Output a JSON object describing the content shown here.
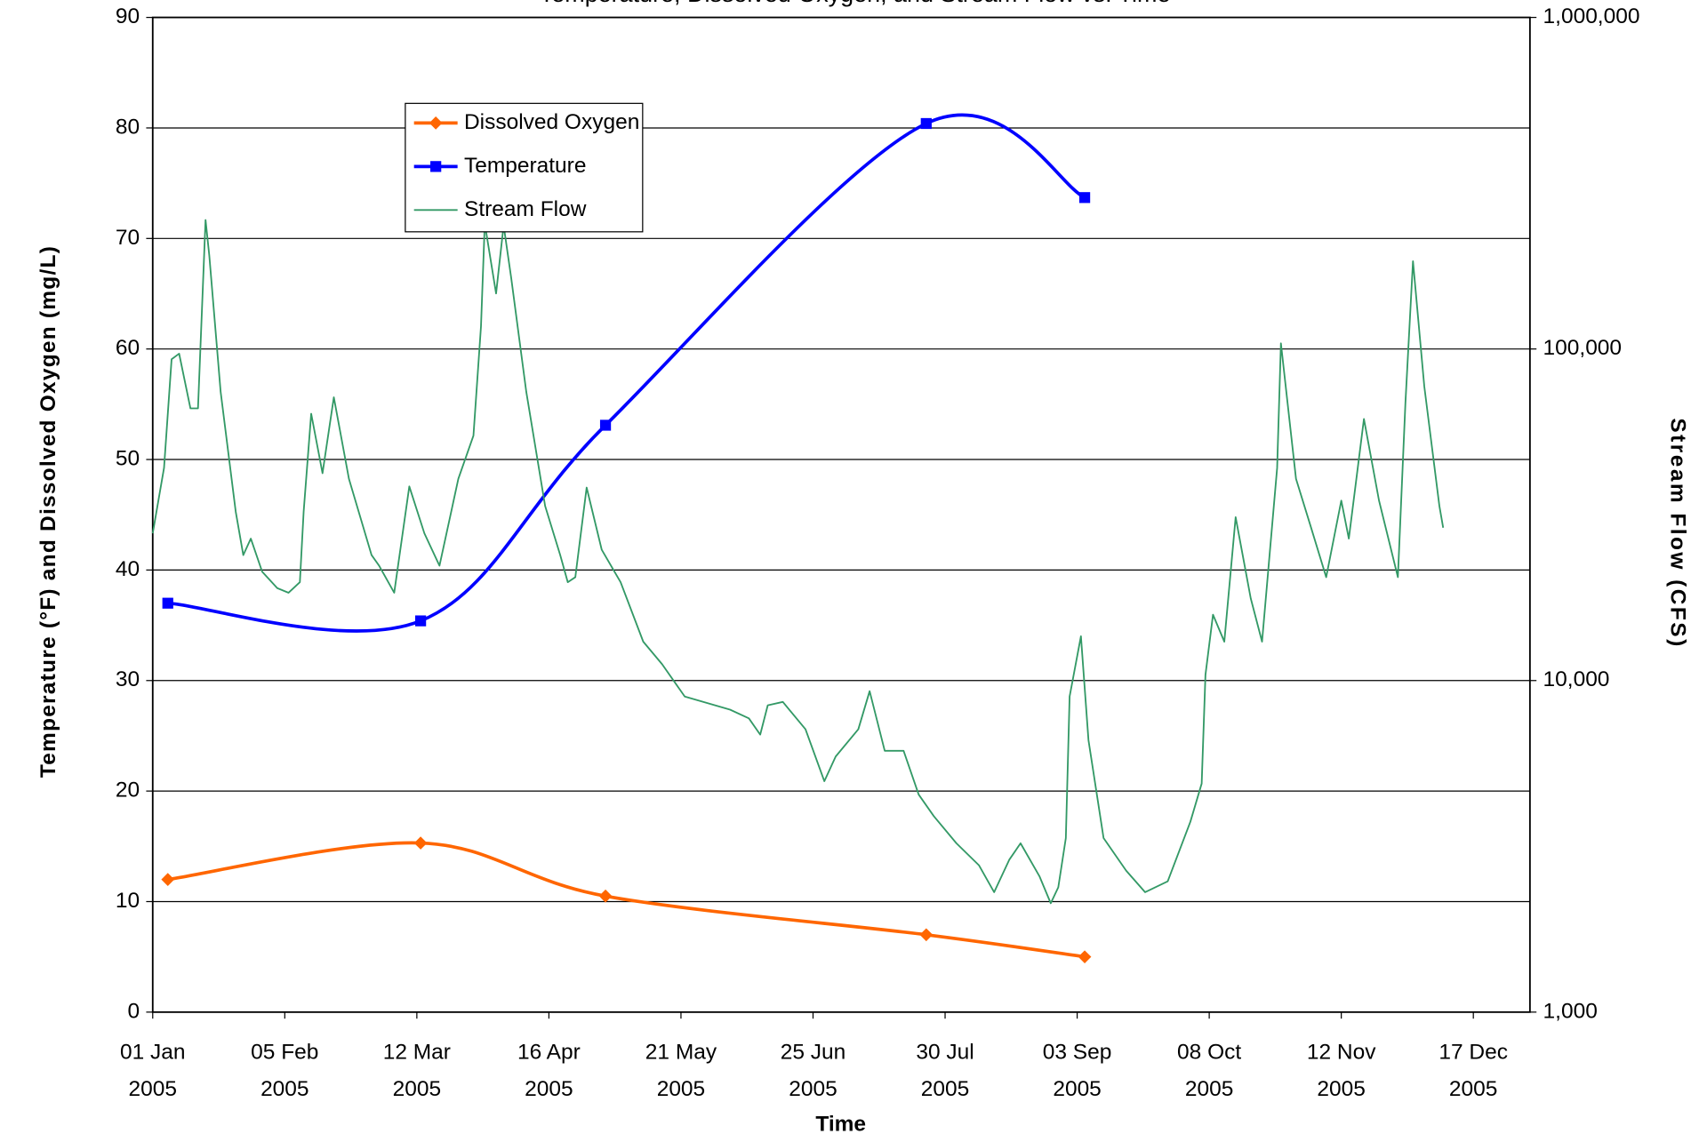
{
  "chart_data": {
    "type": "line",
    "title": "Temperature, Dissolved Oxygen, and Stream Flow vs. Time",
    "x_label": "Time",
    "y_label": "Temperature (°F) and Dissolved Oxygen (mg/L)",
    "y2_label": "Stream Flow (CFS)",
    "xlim": [
      "2005-01-01",
      "2005-12-31"
    ],
    "xticks": [
      {
        "value": "2005-01-01",
        "label": "01 Jan 2005"
      },
      {
        "value": "2005-02-05",
        "label": "05 Feb 2005"
      },
      {
        "value": "2005-03-12",
        "label": "12 Mar 2005"
      },
      {
        "value": "2005-04-16",
        "label": "16 Apr 2005"
      },
      {
        "value": "2005-05-21",
        "label": "21 May 2005"
      },
      {
        "value": "2005-06-25",
        "label": "25 Jun 2005"
      },
      {
        "value": "2005-07-30",
        "label": "30 Jul 2005"
      },
      {
        "value": "2005-09-03",
        "label": "03 Sep 2005"
      },
      {
        "value": "2005-10-08",
        "label": "08 Oct 2005"
      },
      {
        "value": "2005-11-12",
        "label": "12 Nov 2005"
      },
      {
        "value": "2005-12-17",
        "label": "17 Dec 2005"
      }
    ],
    "ylim": [
      0,
      90
    ],
    "yticks": [
      0,
      10,
      20,
      30,
      40,
      50,
      60,
      70,
      80,
      90
    ],
    "y2lim": [
      1000,
      1000000
    ],
    "y2ticks": [
      {
        "value": 1000,
        "label": "1,000"
      },
      {
        "value": 10000,
        "label": "10,000"
      },
      {
        "value": 100000,
        "label": "100,000"
      },
      {
        "value": 1000000,
        "label": "1,000,000"
      }
    ],
    "y2_log": true,
    "grid": true,
    "legend": "upper-left",
    "series": [
      {
        "name": "Dissolved Oxygen",
        "color": "#ff6600",
        "marker": "diamond",
        "smooth": true,
        "x": [
          "2005-01-05",
          "2005-03-13",
          "2005-05-01",
          "2005-07-25",
          "2005-09-05"
        ],
        "values": [
          12.0,
          15.3,
          10.5,
          7.0,
          5.0
        ]
      },
      {
        "name": "Temperature",
        "color": "#0000ff",
        "marker": "square",
        "smooth": true,
        "x": [
          "2005-01-05",
          "2005-03-13",
          "2005-05-01",
          "2005-07-25",
          "2005-09-05"
        ],
        "values": [
          37.0,
          35.4,
          53.1,
          80.4,
          73.7
        ]
      },
      {
        "name": "Stream Flow",
        "color": "#339966",
        "axis": "y2",
        "x": [
          "2005-01-01",
          "2005-01-04",
          "2005-01-06",
          "2005-01-08",
          "2005-01-11",
          "2005-01-13",
          "2005-01-15",
          "2005-01-16",
          "2005-01-19",
          "2005-01-23",
          "2005-01-25",
          "2005-01-27",
          "2005-01-30",
          "2005-02-03",
          "2005-02-06",
          "2005-02-09",
          "2005-02-10",
          "2005-02-12",
          "2005-02-15",
          "2005-02-18",
          "2005-02-22",
          "2005-02-28",
          "2005-03-02",
          "2005-03-06",
          "2005-03-10",
          "2005-03-14",
          "2005-03-18",
          "2005-03-23",
          "2005-03-27",
          "2005-03-29",
          "2005-03-30",
          "2005-04-02",
          "2005-04-04",
          "2005-04-06",
          "2005-04-10",
          "2005-04-15",
          "2005-04-19",
          "2005-04-21",
          "2005-04-23",
          "2005-04-26",
          "2005-04-30",
          "2005-05-05",
          "2005-05-11",
          "2005-05-16",
          "2005-05-22",
          "2005-05-28",
          "2005-06-03",
          "2005-06-08",
          "2005-06-11",
          "2005-06-13",
          "2005-06-17",
          "2005-06-23",
          "2005-06-28",
          "2005-07-01",
          "2005-07-07",
          "2005-07-10",
          "2005-07-14",
          "2005-07-19",
          "2005-07-23",
          "2005-07-27",
          "2005-08-02",
          "2005-08-08",
          "2005-08-12",
          "2005-08-16",
          "2005-08-19",
          "2005-08-24",
          "2005-08-27",
          "2005-08-29",
          "2005-08-31",
          "2005-09-01",
          "2005-09-04",
          "2005-09-06",
          "2005-09-10",
          "2005-09-16",
          "2005-09-21",
          "2005-09-27",
          "2005-10-03",
          "2005-10-06",
          "2005-10-07",
          "2005-10-09",
          "2005-10-12",
          "2005-10-15",
          "2005-10-19",
          "2005-10-22",
          "2005-10-26",
          "2005-10-27",
          "2005-10-31",
          "2005-11-04",
          "2005-11-08",
          "2005-11-12",
          "2005-11-14",
          "2005-11-18",
          "2005-11-22",
          "2005-11-27",
          "2005-11-29",
          "2005-12-01",
          "2005-12-04",
          "2005-12-08",
          "2005-12-09"
        ],
        "values": [
          27800,
          43800,
          93100,
          96800,
          66200,
          66200,
          245000,
          191000,
          74300,
          32300,
          23900,
          26800,
          21300,
          19000,
          18400,
          19800,
          32300,
          63800,
          42200,
          71500,
          40600,
          23900,
          22200,
          18400,
          38500,
          27800,
          22200,
          40600,
          54800,
          117000,
          239000,
          147000,
          236000,
          164000,
          74300,
          33600,
          23900,
          19800,
          20500,
          38200,
          24800,
          19800,
          13100,
          11200,
          8950,
          8550,
          8170,
          7690,
          6870,
          8420,
          8620,
          7130,
          4970,
          5900,
          7130,
          9290,
          6140,
          6140,
          4530,
          3900,
          3230,
          2770,
          2300,
          2880,
          3230,
          2570,
          2130,
          2380,
          3350,
          8950,
          13600,
          6610,
          3350,
          2670,
          2300,
          2480,
          3750,
          4890,
          10400,
          15800,
          13100,
          31100,
          17700,
          13100,
          43800,
          104000,
          40600,
          28900,
          20500,
          34900,
          26800,
          61500,
          34900,
          20500,
          68900,
          184000,
          77100,
          33600,
          28900
        ]
      }
    ]
  }
}
